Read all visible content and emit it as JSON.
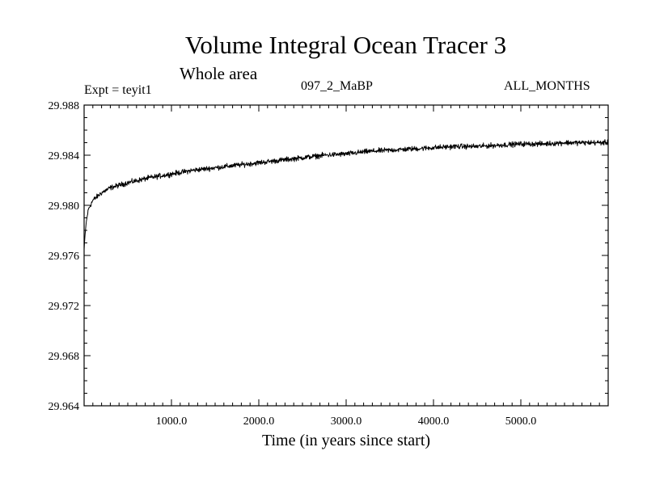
{
  "chart_data": {
    "type": "line",
    "title": "Volume Integral Ocean Tracer 3",
    "subtitle": "Whole area",
    "annotations": {
      "left": "Expt = teyit1",
      "center": "097_2_MaBP",
      "right": "ALL_MONTHS"
    },
    "xlabel": "Time (in years since start)",
    "ylabel": "",
    "xlim": [
      0,
      6000
    ],
    "ylim": [
      29.964,
      29.988
    ],
    "x_ticks": [
      1000,
      2000,
      3000,
      4000,
      5000
    ],
    "x_tick_labels": [
      "1000.0",
      "2000.0",
      "3000.0",
      "4000.0",
      "5000.0"
    ],
    "y_ticks": [
      29.964,
      29.968,
      29.972,
      29.976,
      29.98,
      29.984,
      29.988
    ],
    "y_tick_labels": [
      "29.964",
      "29.968",
      "29.972",
      "29.976",
      "29.980",
      "29.984",
      "29.988"
    ],
    "grid": false,
    "series": [
      {
        "x": [
          0,
          10,
          25,
          50,
          100,
          200,
          300,
          500,
          750,
          1000,
          1250,
          1500,
          1750,
          2000,
          2250,
          2500,
          2750,
          3000,
          3250,
          3500,
          3750,
          4000,
          4250,
          4500,
          4750,
          5000,
          5250,
          5500,
          5750,
          6000
        ],
        "values": [
          29.9765,
          29.9776,
          29.9787,
          29.9797,
          29.9804,
          29.981,
          29.9814,
          29.9818,
          29.9822,
          29.9825,
          29.9828,
          29.983,
          29.9832,
          29.9834,
          29.9836,
          29.9838,
          29.984,
          29.9841,
          29.9843,
          29.9844,
          29.9845,
          29.9846,
          29.9847,
          29.9847,
          29.9848,
          29.9849,
          29.9849,
          29.985,
          29.985,
          29.985
        ],
        "noise_amplitude": 0.0003,
        "color": "#000000"
      }
    ]
  }
}
